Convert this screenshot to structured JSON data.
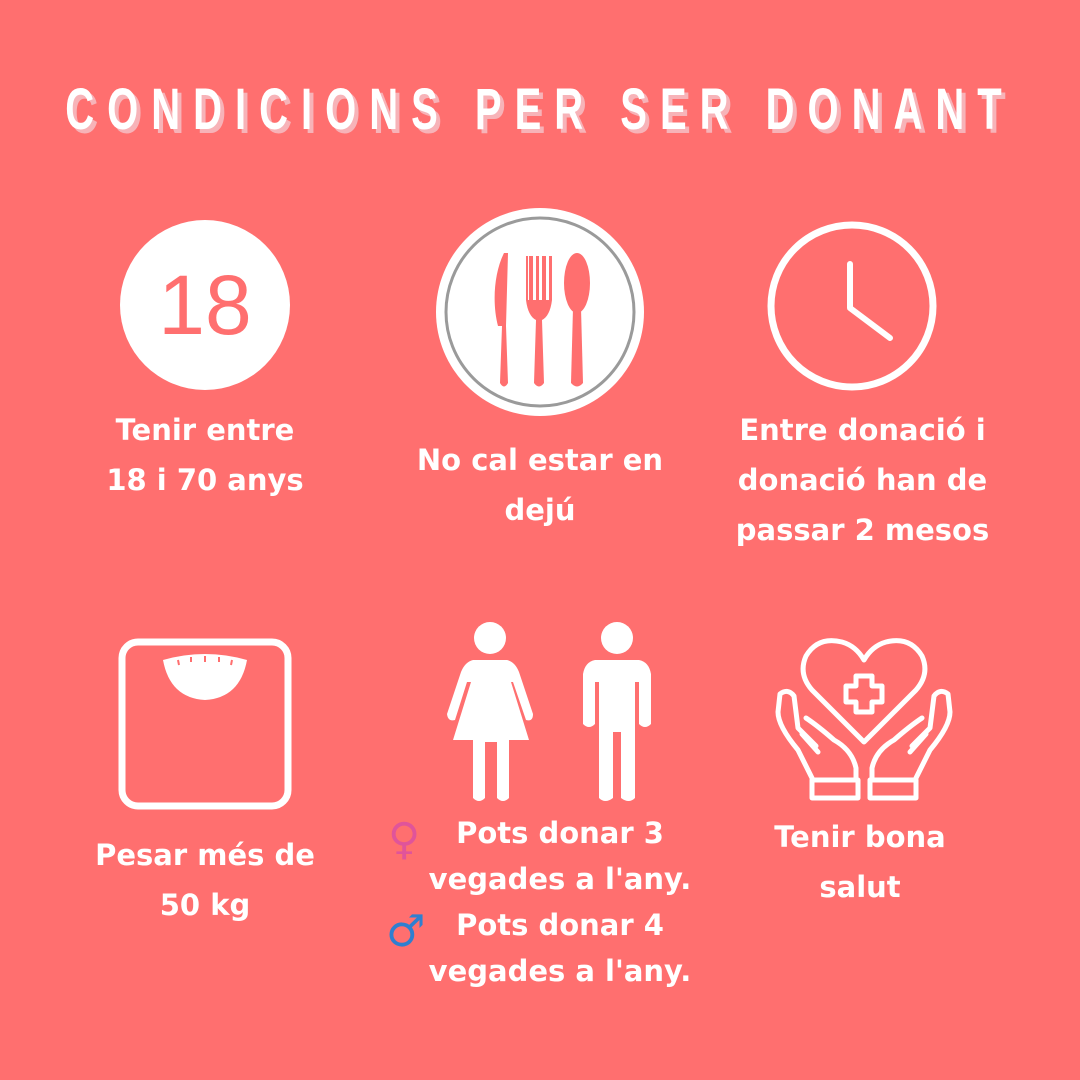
{
  "title": "CONDICIONS PER SER DONANT",
  "colors": {
    "background": "#FF6F6F",
    "title_shadow": "#F7B3B8",
    "female": "#E0549A",
    "male": "#2F7FD0"
  },
  "items": [
    {
      "icon": "age-18-icon",
      "badge": "18",
      "lines": [
        "Tenir entre",
        "18 i 70 anys"
      ]
    },
    {
      "icon": "cutlery-plate-icon",
      "lines": [
        "No cal estar en",
        "dejú"
      ]
    },
    {
      "icon": "clock-icon",
      "lines": [
        "Entre donació i",
        "donació han de",
        "passar  2 mesos"
      ]
    },
    {
      "icon": "weighing-scale-icon",
      "lines": [
        "Pesar més de",
        "50 kg"
      ]
    },
    {
      "icon": "woman-man-icon",
      "female_symbol": "♀",
      "male_symbol": "♂",
      "lines": [
        "Pots donar 3",
        "vegades a l'any.",
        "Pots donar 4",
        "vegades a l'any."
      ]
    },
    {
      "icon": "hands-heart-icon",
      "lines": [
        "Tenir bona",
        "salut"
      ]
    }
  ]
}
